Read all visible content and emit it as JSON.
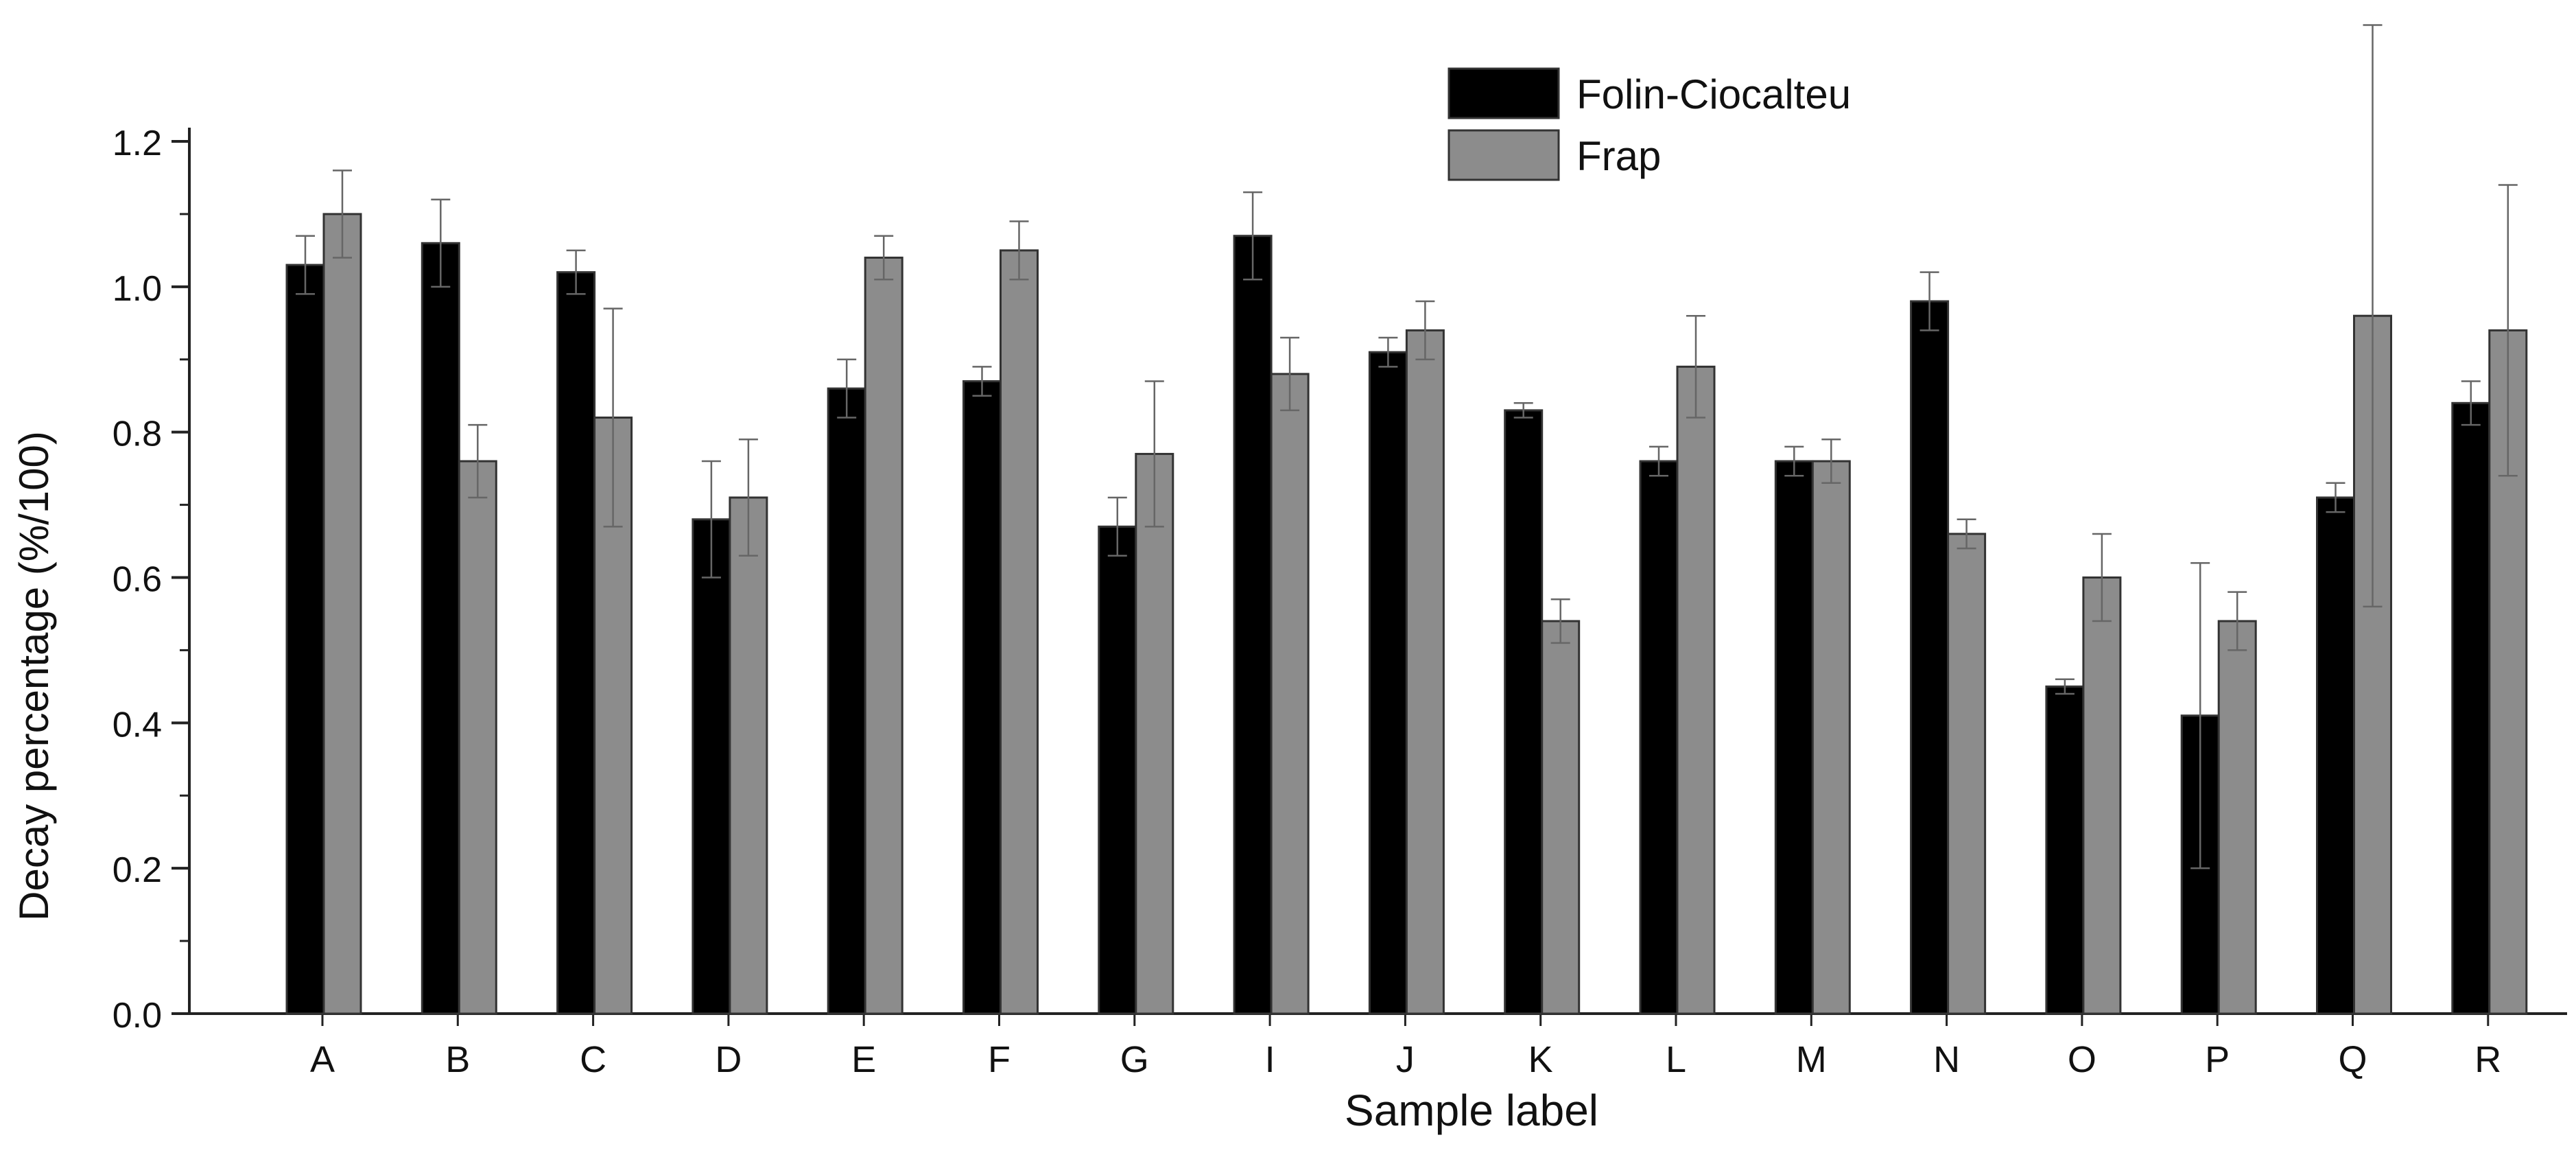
{
  "chart_data": {
    "type": "bar",
    "title": "",
    "xlabel": "Sample label",
    "ylabel": "Decay percentage (%/100)",
    "ylim": [
      0,
      1.2
    ],
    "yticks": [
      "0.0",
      "0.2",
      "0.4",
      "0.6",
      "0.8",
      "1.0",
      "1.2"
    ],
    "grid": false,
    "legend_position": "top-right",
    "categories": [
      "A",
      "B",
      "C",
      "D",
      "E",
      "F",
      "G",
      "I",
      "J",
      "K",
      "L",
      "M",
      "N",
      "O",
      "P",
      "Q",
      "R"
    ],
    "series": [
      {
        "name": "Folin-Ciocalteu",
        "color": "#000000",
        "values": [
          1.03,
          1.06,
          1.02,
          0.68,
          0.86,
          0.87,
          0.67,
          1.07,
          0.91,
          0.83,
          0.76,
          0.76,
          0.98,
          0.45,
          0.41,
          0.71,
          0.84
        ],
        "errors": [
          0.04,
          0.06,
          0.03,
          0.08,
          0.04,
          0.02,
          0.04,
          0.06,
          0.02,
          0.01,
          0.02,
          0.02,
          0.04,
          0.01,
          0.21,
          0.02,
          0.03
        ]
      },
      {
        "name": "Frap",
        "color": "#8c8c8c",
        "values": [
          1.1,
          0.76,
          0.82,
          0.71,
          1.04,
          1.05,
          0.77,
          0.88,
          0.94,
          0.54,
          0.89,
          0.76,
          0.66,
          0.6,
          0.54,
          0.96,
          0.94
        ],
        "errors": [
          0.06,
          0.05,
          0.15,
          0.08,
          0.03,
          0.04,
          0.1,
          0.05,
          0.04,
          0.03,
          0.07,
          0.03,
          0.02,
          0.06,
          0.04,
          0.4,
          0.2
        ]
      }
    ]
  }
}
